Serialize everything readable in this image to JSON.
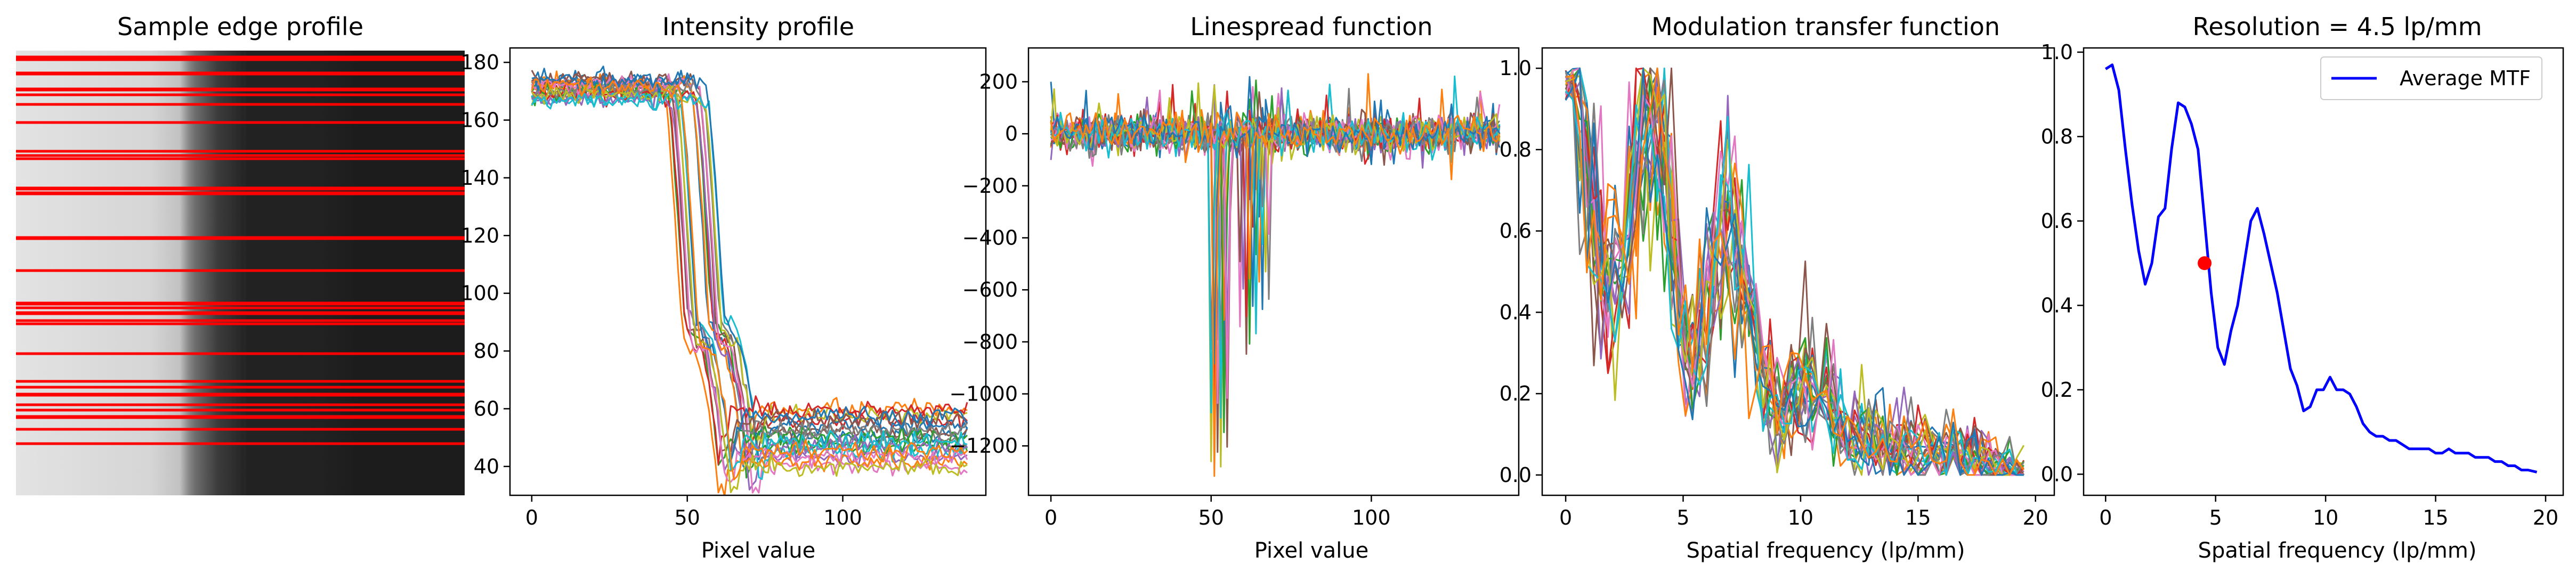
{
  "figure": {
    "panel1": {
      "title": "Sample edge profile"
    },
    "panel2": {
      "title": "Intensity profile",
      "xlabel": "Pixel value"
    },
    "panel3": {
      "title": "Linespread function",
      "xlabel": "Pixel value"
    },
    "panel4": {
      "title": "Modulation transfer function",
      "xlabel": "Spatial frequency (lp/mm)"
    },
    "panel5": {
      "title": "Resolution = 4.5 lp/mm",
      "xlabel": "Spatial frequency (lp/mm)",
      "legend": "Average MTF"
    }
  },
  "colors": {
    "edge_lines": "#ff0000",
    "average_mtf": "#0000ff",
    "resolution_marker": "#ff0000",
    "series_palette": [
      "#1f77b4",
      "#ff7f0e",
      "#2ca02c",
      "#d62728",
      "#9467bd",
      "#8c564b",
      "#e377c2",
      "#7f7f7f",
      "#bcbd22",
      "#17becf"
    ]
  },
  "chart_data": [
    {
      "type": "image",
      "title": "Sample edge profile",
      "content": "grayscale edge image, bright left region and dark right region",
      "edge_line_rows": 22,
      "edge_line_color": "#ff0000"
    },
    {
      "type": "line",
      "title": "Intensity profile",
      "xlabel": "Pixel value",
      "ylabel": "",
      "xlim": [
        -7,
        146
      ],
      "ylim": [
        30,
        185
      ],
      "xticks": [
        0,
        50,
        100
      ],
      "yticks": [
        40,
        60,
        80,
        100,
        120,
        140,
        160,
        180
      ],
      "series_count": 22,
      "profile_shape": {
        "x": [
          0,
          48,
          50,
          52,
          54,
          55,
          57,
          60,
          62,
          64,
          65,
          66,
          68,
          70,
          80,
          100,
          140
        ],
        "y": [
          170,
          170,
          166,
          140,
          105,
          88,
          85,
          82,
          72,
          60,
          48,
          40,
          42,
          50,
          50,
          50,
          50
        ]
      },
      "levels": {
        "left_plateau": [
          166,
          175
        ],
        "middle_step": [
          80,
          92
        ],
        "right_plateau": [
          38,
          64
        ]
      }
    },
    {
      "type": "line",
      "title": "Linespread function",
      "xlabel": "Pixel value",
      "ylabel": "",
      "xlim": [
        -7,
        146
      ],
      "ylim": [
        -1390,
        330
      ],
      "xticks": [
        0,
        50,
        100
      ],
      "yticks": [
        -1200,
        -1000,
        -800,
        -600,
        -400,
        -200,
        0,
        200
      ],
      "series_count": 22,
      "features": {
        "main_dip": {
          "x": 52,
          "min": -1320
        },
        "secondary_dip": {
          "x": 63,
          "min": -850
        },
        "baseline_noise": [
          -80,
          100
        ],
        "max_spike": 270
      }
    },
    {
      "type": "line",
      "title": "Modulation transfer function",
      "xlabel": "Spatial frequency (lp/mm)",
      "ylabel": "",
      "xlim": [
        -1,
        20.8
      ],
      "ylim": [
        -0.05,
        1.05
      ],
      "xticks": [
        0,
        5,
        10,
        15,
        20
      ],
      "yticks": [
        0.0,
        0.2,
        0.4,
        0.6,
        0.8,
        1.0
      ],
      "series_count": 22,
      "x_range": [
        0,
        19.6
      ]
    },
    {
      "type": "line",
      "title": "Resolution = 4.5 lp/mm",
      "xlabel": "Spatial frequency (lp/mm)",
      "ylabel": "",
      "xlim": [
        -1,
        20.8
      ],
      "ylim": [
        -0.05,
        1.01
      ],
      "xticks": [
        0,
        5,
        10,
        15,
        20
      ],
      "yticks": [
        0.0,
        0.2,
        0.4,
        0.6,
        0.8,
        1.0
      ],
      "legend_position": "top-right",
      "series": [
        {
          "name": "Average MTF",
          "x": [
            0.0,
            0.3,
            0.6,
            0.9,
            1.2,
            1.5,
            1.8,
            2.1,
            2.4,
            2.7,
            3.0,
            3.3,
            3.6,
            3.9,
            4.2,
            4.5,
            4.8,
            5.1,
            5.4,
            5.7,
            6.0,
            6.3,
            6.6,
            6.9,
            7.2,
            7.5,
            7.8,
            8.1,
            8.4,
            8.7,
            9.0,
            9.3,
            9.6,
            9.9,
            10.2,
            10.5,
            10.8,
            11.1,
            11.4,
            11.7,
            12.0,
            12.3,
            12.6,
            12.9,
            13.2,
            13.5,
            13.8,
            14.1,
            14.4,
            14.7,
            15.0,
            15.3,
            15.6,
            15.9,
            16.2,
            16.5,
            16.8,
            17.1,
            17.4,
            17.7,
            18.0,
            18.3,
            18.6,
            18.9,
            19.2,
            19.6
          ],
          "y": [
            0.96,
            0.97,
            0.91,
            0.77,
            0.64,
            0.53,
            0.45,
            0.5,
            0.61,
            0.63,
            0.77,
            0.88,
            0.87,
            0.83,
            0.77,
            0.6,
            0.43,
            0.3,
            0.26,
            0.34,
            0.4,
            0.5,
            0.6,
            0.63,
            0.57,
            0.5,
            0.43,
            0.34,
            0.25,
            0.21,
            0.15,
            0.16,
            0.2,
            0.2,
            0.23,
            0.2,
            0.2,
            0.19,
            0.16,
            0.12,
            0.1,
            0.09,
            0.09,
            0.08,
            0.08,
            0.07,
            0.06,
            0.06,
            0.06,
            0.06,
            0.05,
            0.05,
            0.06,
            0.05,
            0.05,
            0.05,
            0.04,
            0.04,
            0.04,
            0.03,
            0.03,
            0.02,
            0.02,
            0.01,
            0.01,
            0.005
          ]
        }
      ],
      "marker": {
        "x": 4.5,
        "y": 0.5,
        "color": "#ff0000"
      }
    }
  ]
}
